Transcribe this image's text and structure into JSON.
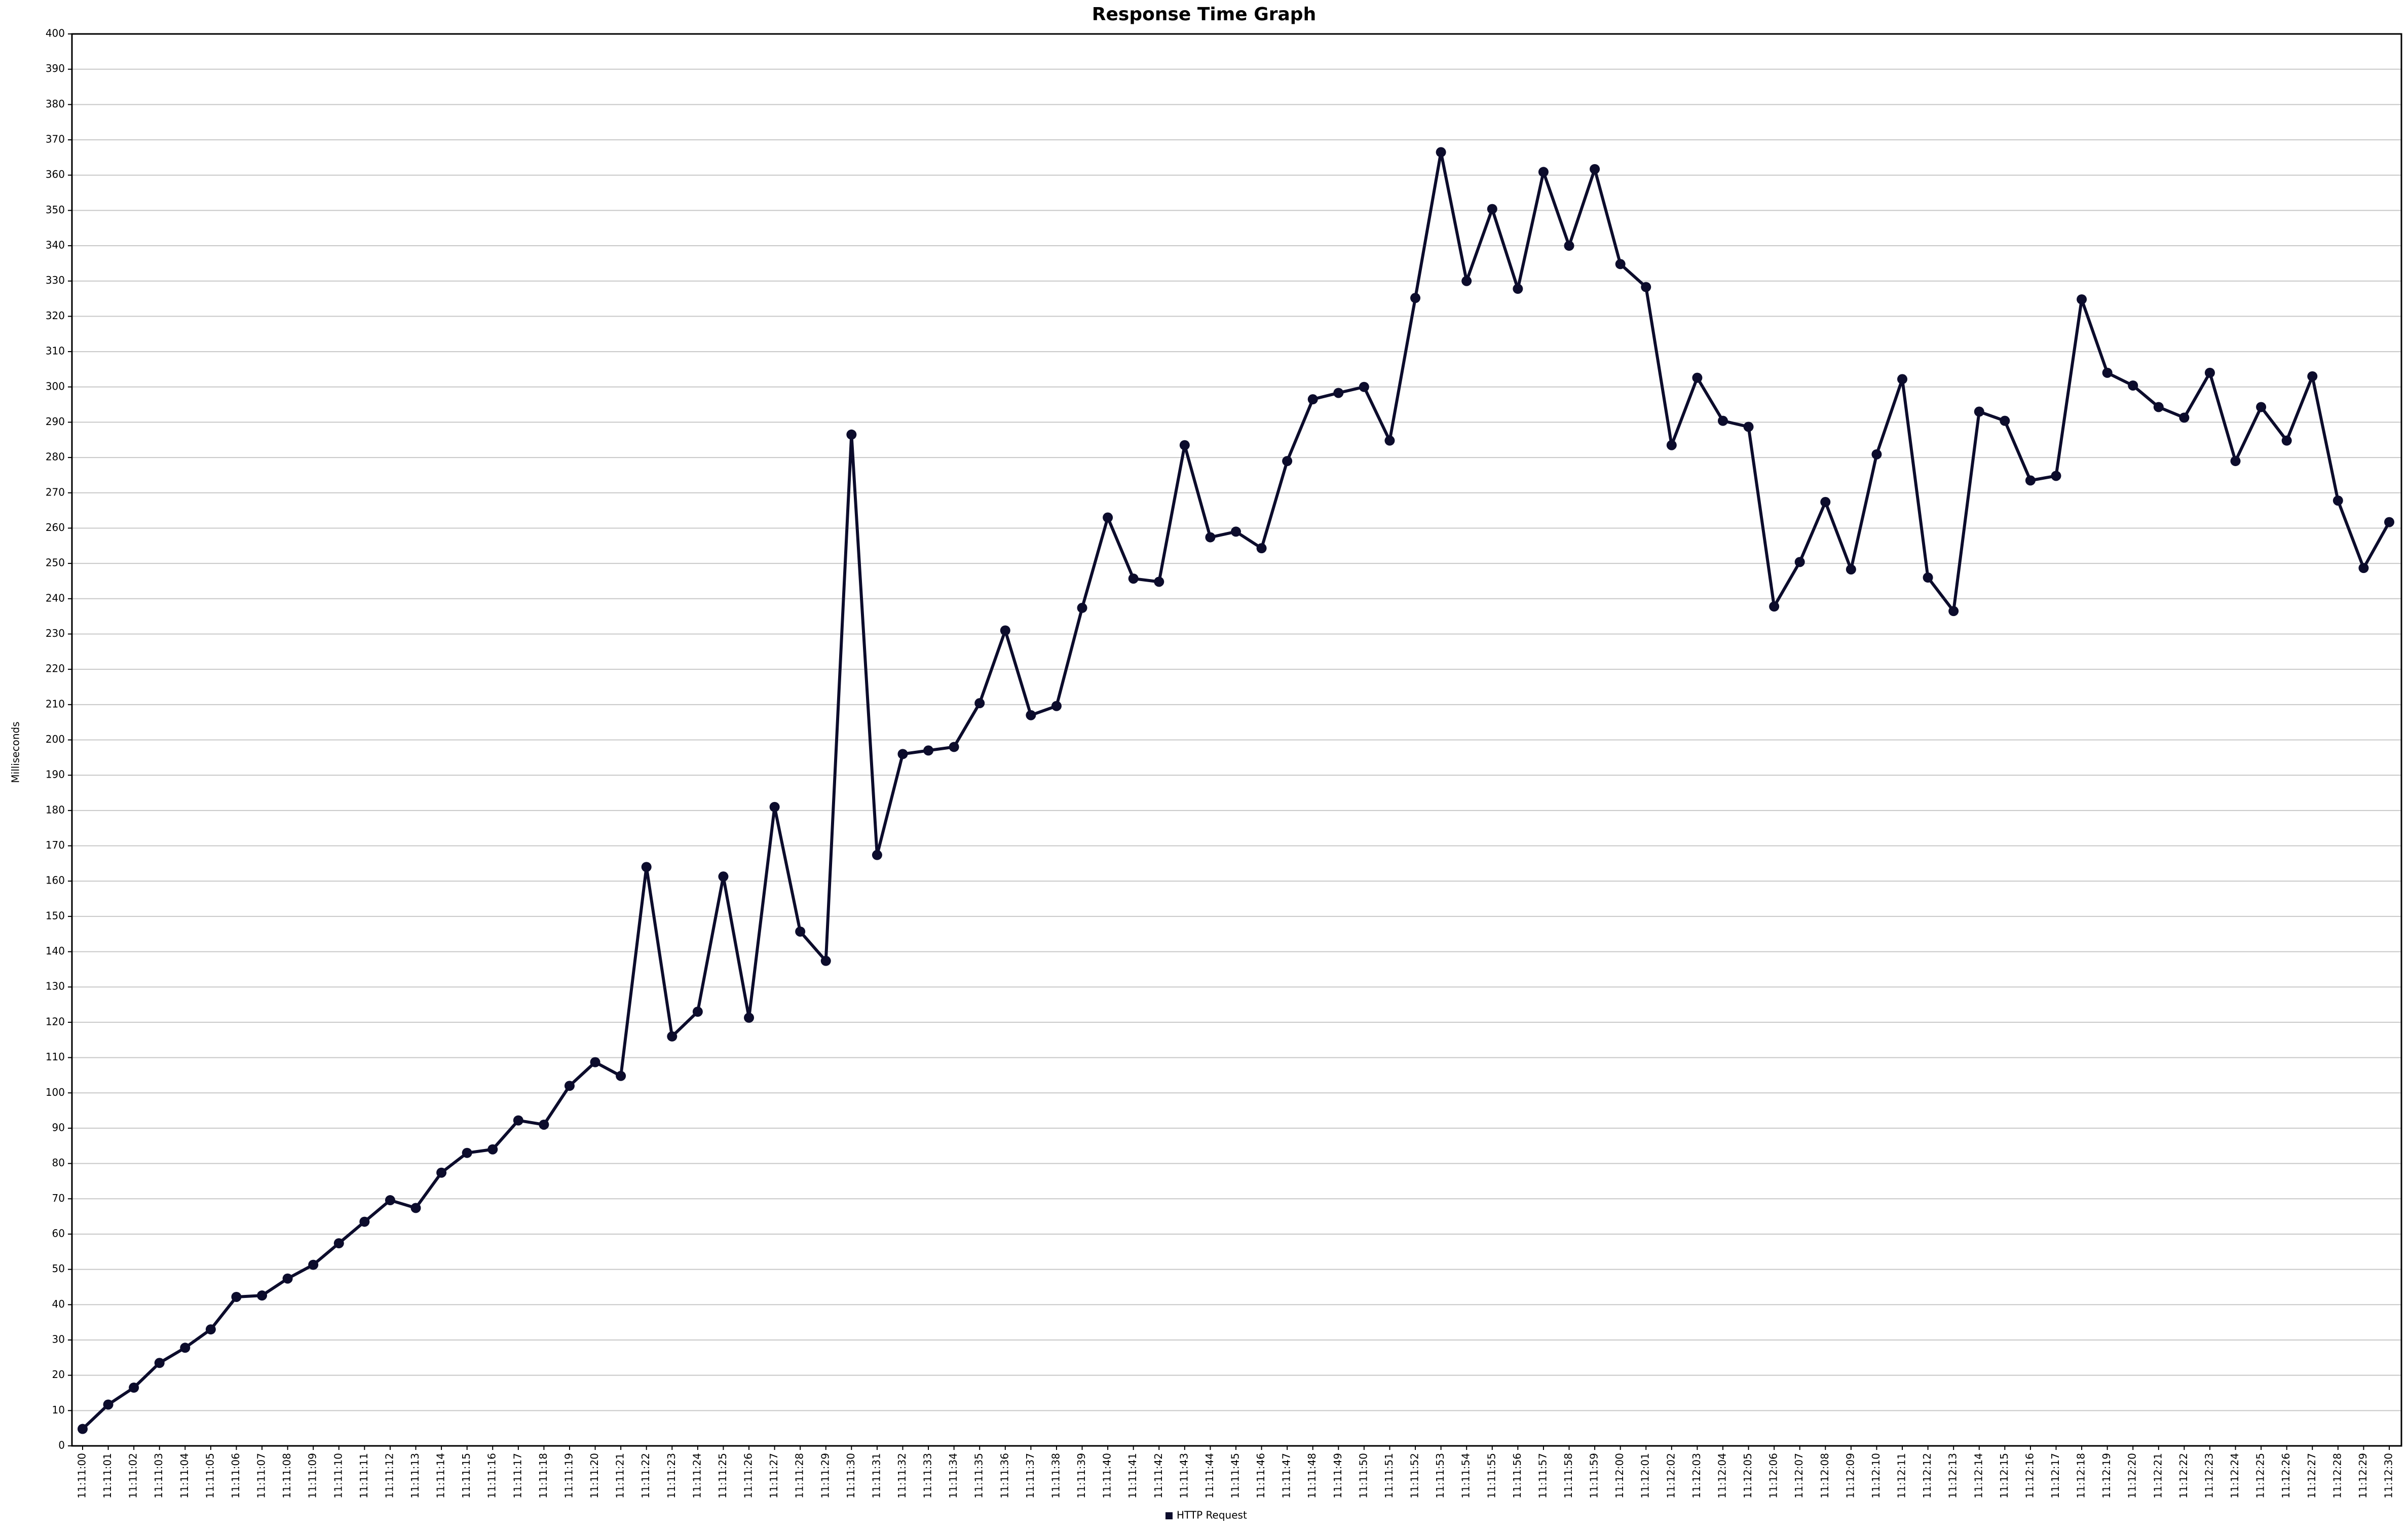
{
  "chart_data": {
    "type": "line",
    "title": "Response Time Graph",
    "y_label": "Milliseconds",
    "categories": [
      "11:11:00",
      "11:11:01",
      "11:11:02",
      "11:11:03",
      "11:11:04",
      "11:11:05",
      "11:11:06",
      "11:11:07",
      "11:11:08",
      "11:11:09",
      "11:11:10",
      "11:11:11",
      "11:11:12",
      "11:11:13",
      "11:11:14",
      "11:11:15",
      "11:11:16",
      "11:11:17",
      "11:11:18",
      "11:11:19",
      "11:11:20",
      "11:11:21",
      "11:11:22",
      "11:11:23",
      "11:11:24",
      "11:11:25",
      "11:11:26",
      "11:11:27",
      "11:11:28",
      "11:11:29",
      "11:11:30",
      "11:11:31",
      "11:11:32",
      "11:11:33",
      "11:11:34",
      "11:11:35",
      "11:11:36",
      "11:11:37",
      "11:11:38",
      "11:11:39",
      "11:11:40",
      "11:11:41",
      "11:11:42",
      "11:11:43",
      "11:11:44",
      "11:11:45",
      "11:11:46",
      "11:11:47",
      "11:11:48",
      "11:11:49",
      "11:11:50",
      "11:11:51",
      "11:11:52",
      "11:11:53",
      "11:11:54",
      "11:11:55",
      "11:11:56",
      "11:11:57",
      "11:11:58",
      "11:11:59",
      "11:12:00",
      "11:12:01",
      "11:12:02",
      "11:12:03",
      "11:12:04",
      "11:12:05",
      "11:12:06",
      "11:12:07",
      "11:12:08",
      "11:12:09",
      "11:12:10",
      "11:12:11",
      "11:12:12",
      "11:12:13",
      "11:12:14",
      "11:12:15",
      "11:12:16",
      "11:12:17",
      "11:12:18",
      "11:12:19",
      "11:12:20",
      "11:12:21",
      "11:12:22",
      "11:12:23",
      "11:12:24",
      "11:12:25",
      "11:12:26",
      "11:12:27",
      "11:12:28",
      "11:12:29",
      "11:12:30"
    ],
    "series": [
      {
        "name": "HTTP Request",
        "color": "#0c0c2c",
        "values": [
          4.8,
          11.7,
          16.5,
          23.5,
          27.8,
          33,
          42.2,
          42.6,
          47.4,
          51.3,
          57.4,
          63.5,
          69.6,
          67.4,
          77.4,
          83,
          84,
          92.2,
          91,
          102,
          108.7,
          104.8,
          164,
          116,
          123,
          161.3,
          121.3,
          181,
          145.7,
          137.4,
          286.5,
          167.4,
          196,
          197,
          198,
          210.4,
          231,
          207,
          209.6,
          237.4,
          263,
          245.7,
          244.8,
          283.5,
          257.4,
          259,
          254.3,
          279,
          296.5,
          298.3,
          300,
          284.8,
          325.2,
          366.5,
          330,
          350.4,
          327.8,
          360.9,
          340,
          361.7,
          334.8,
          328.3,
          283.5,
          302.6,
          290.4,
          288.7,
          237.8,
          250.4,
          267.4,
          248.3,
          280.9,
          302.2,
          246,
          236.5,
          293,
          290.4,
          273.5,
          274.8,
          324.8,
          304,
          300.4,
          294.3,
          291.3,
          304,
          279,
          294.3,
          284.8,
          303,
          267.8,
          248.7,
          261.7
        ]
      }
    ],
    "ylim": [
      0,
      400
    ],
    "yticks": [
      0,
      10,
      20,
      30,
      40,
      50,
      60,
      70,
      80,
      90,
      100,
      110,
      120,
      130,
      140,
      150,
      160,
      170,
      180,
      190,
      200,
      210,
      220,
      230,
      240,
      250,
      260,
      270,
      280,
      290,
      300,
      310,
      320,
      330,
      340,
      350,
      360,
      370,
      380,
      390,
      400
    ],
    "grid": true,
    "legend": "bottom"
  }
}
